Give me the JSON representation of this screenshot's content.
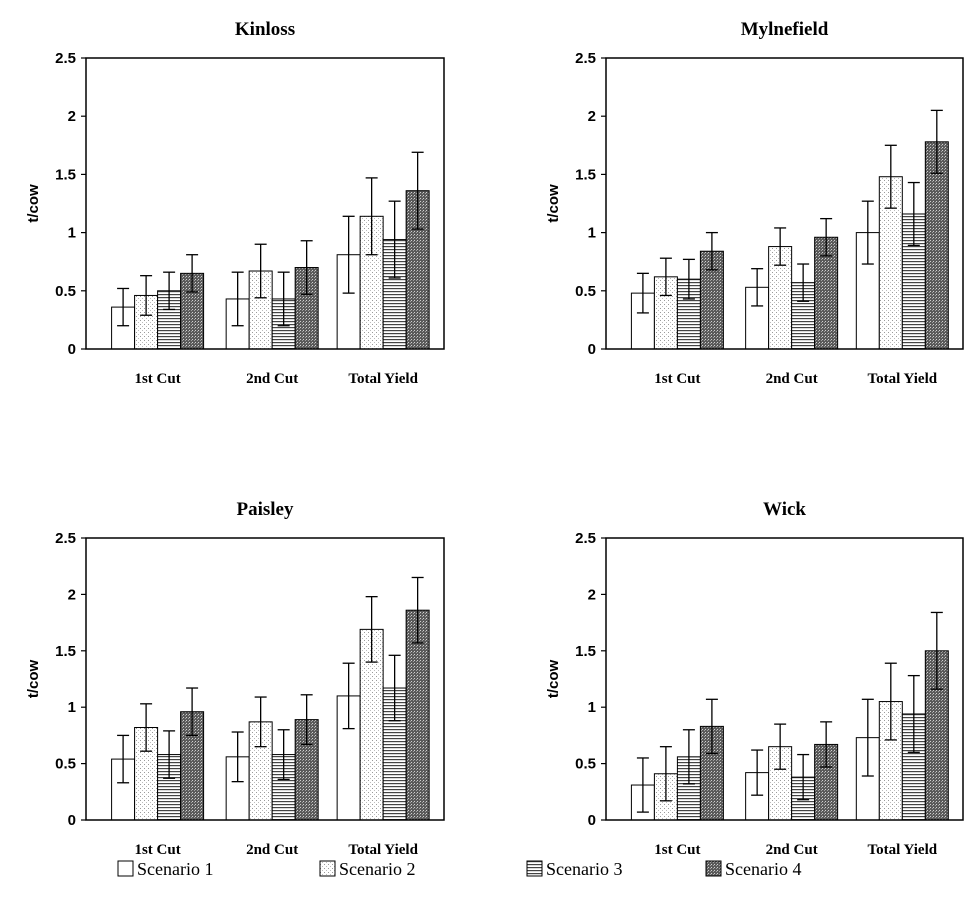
{
  "chart_data": [
    {
      "type": "bar",
      "title": "Kinloss",
      "ylabel": "t/cow",
      "ylim": [
        0,
        2.5
      ],
      "yticks": [
        "0",
        "0.5",
        "1",
        "1.5",
        "2",
        "2.5"
      ],
      "categories": [
        "1st Cut",
        "2nd Cut",
        "Total Yield"
      ],
      "series": [
        {
          "name": "Scenario 1",
          "values": [
            0.36,
            0.43,
            0.81
          ],
          "errors": [
            0.16,
            0.23,
            0.33
          ]
        },
        {
          "name": "Scenario 2",
          "values": [
            0.46,
            0.67,
            1.14
          ],
          "errors": [
            0.17,
            0.23,
            0.33
          ]
        },
        {
          "name": "Scenario 3",
          "values": [
            0.5,
            0.43,
            0.94
          ],
          "errors": [
            0.16,
            0.23,
            0.33
          ]
        },
        {
          "name": "Scenario 4",
          "values": [
            0.65,
            0.7,
            1.36
          ],
          "errors": [
            0.16,
            0.23,
            0.33
          ]
        }
      ]
    },
    {
      "type": "bar",
      "title": "Mylnefield",
      "ylabel": "t/cow",
      "ylim": [
        0,
        2.5
      ],
      "yticks": [
        "0",
        "0.5",
        "1",
        "1.5",
        "2",
        "2.5"
      ],
      "categories": [
        "1st Cut",
        "2nd Cut",
        "Total Yield"
      ],
      "series": [
        {
          "name": "Scenario 1",
          "values": [
            0.48,
            0.53,
            1.0
          ],
          "errors": [
            0.17,
            0.16,
            0.27
          ]
        },
        {
          "name": "Scenario 2",
          "values": [
            0.62,
            0.88,
            1.48
          ],
          "errors": [
            0.16,
            0.16,
            0.27
          ]
        },
        {
          "name": "Scenario 3",
          "values": [
            0.6,
            0.57,
            1.16
          ],
          "errors": [
            0.17,
            0.16,
            0.27
          ]
        },
        {
          "name": "Scenario 4",
          "values": [
            0.84,
            0.96,
            1.78
          ],
          "errors": [
            0.16,
            0.16,
            0.27
          ]
        }
      ]
    },
    {
      "type": "bar",
      "title": "Paisley",
      "ylabel": "t/cow",
      "ylim": [
        0,
        2.5
      ],
      "yticks": [
        "0",
        "0.5",
        "1",
        "1.5",
        "2",
        "2.5"
      ],
      "categories": [
        "1st Cut",
        "2nd Cut",
        "Total Yield"
      ],
      "series": [
        {
          "name": "Scenario 1",
          "values": [
            0.54,
            0.56,
            1.1
          ],
          "errors": [
            0.21,
            0.22,
            0.29
          ]
        },
        {
          "name": "Scenario 2",
          "values": [
            0.82,
            0.87,
            1.69
          ],
          "errors": [
            0.21,
            0.22,
            0.29
          ]
        },
        {
          "name": "Scenario 3",
          "values": [
            0.58,
            0.58,
            1.17
          ],
          "errors": [
            0.21,
            0.22,
            0.29
          ]
        },
        {
          "name": "Scenario 4",
          "values": [
            0.96,
            0.89,
            1.86
          ],
          "errors": [
            0.21,
            0.22,
            0.29
          ]
        }
      ]
    },
    {
      "type": "bar",
      "title": "Wick",
      "ylabel": "t/cow",
      "ylim": [
        0,
        2.5
      ],
      "yticks": [
        "0",
        "0.5",
        "1",
        "1.5",
        "2",
        "2.5"
      ],
      "categories": [
        "1st Cut",
        "2nd Cut",
        "Total Yield"
      ],
      "series": [
        {
          "name": "Scenario 1",
          "values": [
            0.31,
            0.42,
            0.73
          ],
          "errors": [
            0.24,
            0.2,
            0.34
          ]
        },
        {
          "name": "Scenario 2",
          "values": [
            0.41,
            0.65,
            1.05
          ],
          "errors": [
            0.24,
            0.2,
            0.34
          ]
        },
        {
          "name": "Scenario 3",
          "values": [
            0.56,
            0.38,
            0.94
          ],
          "errors": [
            0.24,
            0.2,
            0.34
          ]
        },
        {
          "name": "Scenario 4",
          "values": [
            0.83,
            0.67,
            1.5
          ],
          "errors": [
            0.24,
            0.2,
            0.34
          ]
        }
      ]
    }
  ],
  "legend": {
    "placement": "bottom",
    "items": [
      {
        "label": "Scenario 1",
        "pattern": "white"
      },
      {
        "label": "Scenario 2",
        "pattern": "dotted"
      },
      {
        "label": "Scenario 3",
        "pattern": "horizontal-lines"
      },
      {
        "label": "Scenario 4",
        "pattern": "dense-hatch"
      }
    ]
  }
}
